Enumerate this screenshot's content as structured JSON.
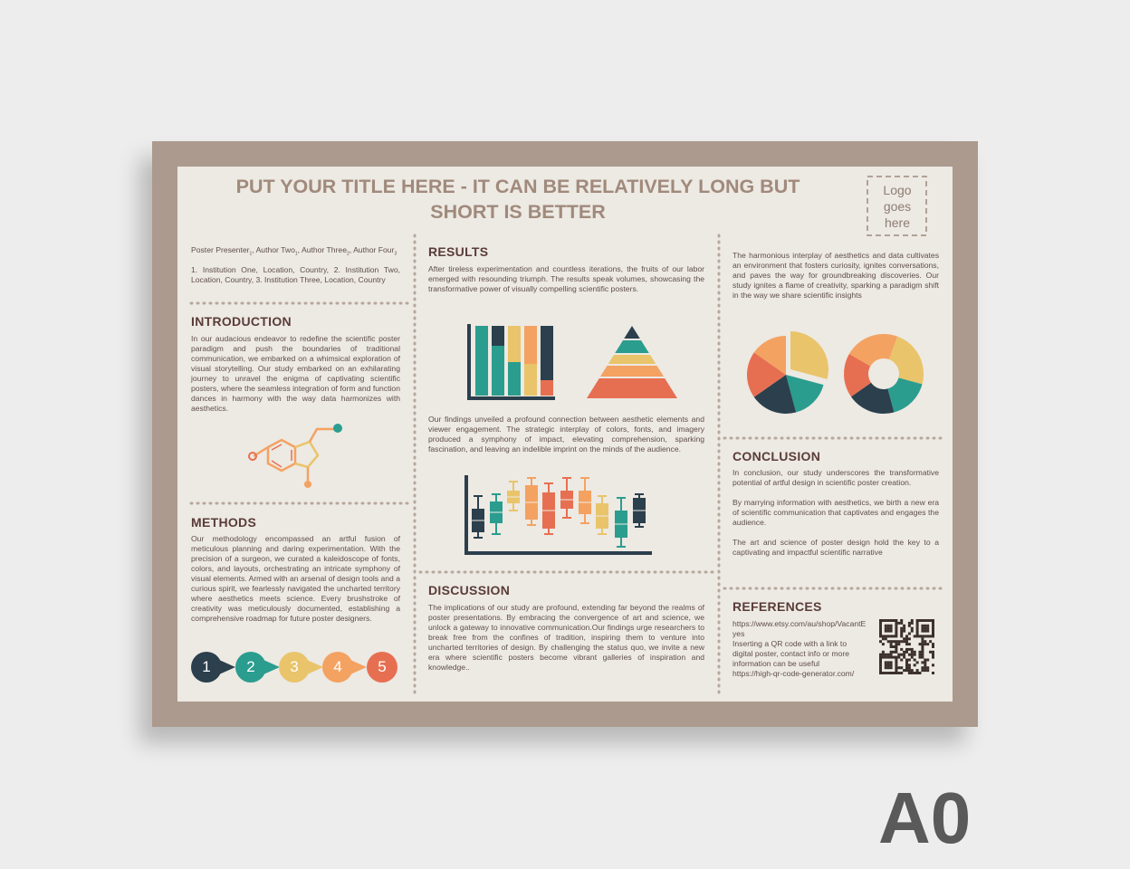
{
  "poster": {
    "title": [
      "PUT YOUR TITLE HERE -  IT CAN BE RELATIVELY LONG BUT",
      "SHORT IS BETTER"
    ],
    "logo": [
      "Logo",
      "goes",
      "here"
    ],
    "authors": [
      {
        "name": "Poster Presenter",
        "index": "1"
      },
      {
        "name": ", Author Two",
        "index": "1"
      },
      {
        "name": ", Author Three",
        "index": "2"
      },
      {
        "name": ", Author Four",
        "index": "3"
      }
    ],
    "affiliations": "1. Institution One, Location, Country, 2. Institution Two, Location, Country, 3. Institution Three, Location, Country",
    "introduction": {
      "heading": "INTRODUCTION",
      "text": "In our audacious endeavor to redefine the scientific poster paradigm and push the boundaries of traditional communication, we embarked on a whimsical exploration of visual storytelling. Our study embarked on an exhilarating journey to unravel the enigma of captivating scientific posters, where the seamless integration of form and function dances in harmony with the way data harmonizes with aesthetics."
    },
    "methods": {
      "heading": "METHODS",
      "text": "Our methodology encompassed an artful fusion of meticulous planning and daring experimentation. With the precision of a surgeon, we curated a kaleidoscope of fonts, colors, and layouts, orchestrating an intricate symphony of visual elements. Armed with an arsenal of design tools and a curious spirit, we fearlessly navigated the uncharted territory where aesthetics meets science. Every brushstroke of creativity was meticulously documented, establishing a comprehensive roadmap for future poster designers."
    },
    "steps": [
      "1",
      "2",
      "3",
      "4",
      "5"
    ],
    "results": {
      "heading": "RESULTS",
      "text": "After tireless experimentation and countless iterations, the fruits of our labor emerged with resounding triumph. The results speak volumes, showcasing the transformative power of visually compelling scientific posters.",
      "text2": "Our findings unveiled a profound connection between aesthetic elements and viewer engagement. The strategic interplay of colors, fonts, and imagery produced a symphony of impact, elevating comprehension, sparking fascination, and leaving an indelible imprint on the minds of the audience."
    },
    "discussion": {
      "heading": "DISCUSSION",
      "text": "The implications of our study are profound, extending far beyond the realms of poster presentations. By embracing the convergence of art and science, we unlock a gateway to innovative communication.Our findings urge researchers to break free from the confines of tradition, inspiring them to venture into uncharted territories of design. By challenging the status quo, we invite a new era where scientific posters become vibrant galleries of inspiration and knowledge.."
    },
    "summary": "The harmonious interplay of aesthetics and data cultivates an environment that fosters curiosity, ignites conversations, and paves the way for groundbreaking discoveries. Our study ignites a flame of creativity, sparking a paradigm shift in the way we share scientific insights",
    "conclusion": {
      "heading": "CONCLUSION",
      "paragraphs": [
        "In conclusion, our study underscores the transformative potential of artful design in scientific poster creation.",
        "By marrying information with aesthetics, we birth a new era of scientific communication that captivates and engages the audience.",
        "The art and science of poster design hold the key to a captivating and impactful scientific narrative"
      ]
    },
    "references": {
      "heading": "REFERENCES",
      "lines": [
        "https://www.etsy.com/au/shop/VacantEyes",
        "Inserting a QR code with a link to digital poster, contact info or more information can be useful",
        "https://high-qr-code-generator.com/"
      ]
    },
    "size_label": "A0"
  }
}
